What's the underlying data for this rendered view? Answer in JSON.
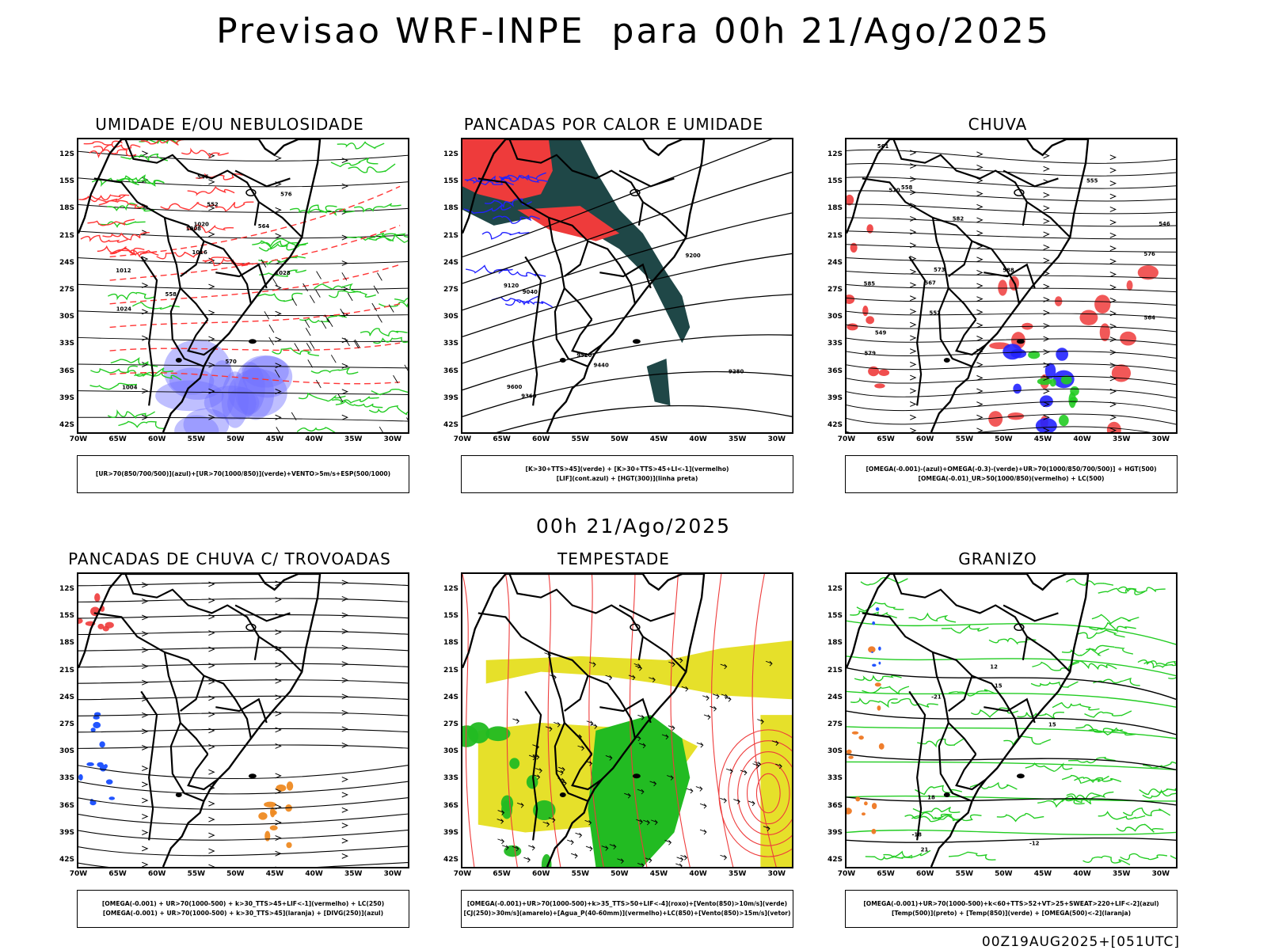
{
  "header": {
    "title": "Previsao WRF-INPE  para 00h 21/Ago/2025",
    "mid_date": "00h 21/Ago/2025",
    "footer_stamp": "00Z19AUG2025+[051UTC]"
  },
  "axes": {
    "y_ticks": [
      "12S",
      "15S",
      "18S",
      "21S",
      "24S",
      "27S",
      "30S",
      "33S",
      "36S",
      "39S",
      "42S"
    ],
    "x_ticks": [
      "70W",
      "65W",
      "60W",
      "55W",
      "50W",
      "45W",
      "40W",
      "35W",
      "30W"
    ]
  },
  "panels": [
    {
      "id": "umidade",
      "title": "UMIDADE E/OU NEBULOSIDADE",
      "legend": [
        "[UR>70(850/700/500)](azul)+[UR>70(1000/850)](verde)+VENTO>5m/s+ESP(500/1000)"
      ],
      "colors": [
        "#7070ff",
        "#22cc22",
        "#ff3333"
      ],
      "labels": [
        "1012",
        "1016",
        "1020",
        "1008",
        "1004",
        "1024",
        "1028",
        "576",
        "570",
        "564",
        "558",
        "552",
        "546"
      ]
    },
    {
      "id": "pancadas-calor",
      "title": "PANCADAS POR CALOR E UMIDADE",
      "legend": [
        "[K>30+TTS>45](verde) + [K>30+TTS>45+LI<-1](vermelho)",
        "[LIF](cont.azul) + [HGT(300)](linha preta)"
      ],
      "colors": [
        "#1f4747",
        "#ee3b3b",
        "#2222ff"
      ],
      "labels": [
        "9600",
        "9520",
        "9440",
        "9360",
        "9280",
        "9200",
        "9120",
        "9040"
      ]
    },
    {
      "id": "chuva",
      "title": "CHUVA",
      "legend": [
        "[OMEGA(-0.001)-(azul)+OMEGA(-0.3)-(verde)+UR>70(1000/850/700/500)] + HGT(500)",
        "[OMEGA(-0.01)_UR>50(1000/850)(vermelho) + LC(500)"
      ],
      "colors": [
        "#2222ff",
        "#22cc22",
        "#ee3b3b"
      ],
      "labels": [
        "588",
        "585",
        "582",
        "579",
        "576",
        "573",
        "570",
        "567",
        "564",
        "561",
        "558",
        "555",
        "552",
        "549",
        "546"
      ]
    },
    {
      "id": "trovoadas",
      "title": "PANCADAS DE CHUVA C/ TROVOADAS",
      "legend": [
        "[OMEGA(-0.001) + UR>70(1000-500) + k>30_TTS>45+LIF<-1](vermelho) + LC(250)",
        "[OMEGA(-0.001) + UR>70(1000-500) + k>30_TTS>45](laranja) + [DIVG(250)](azul)"
      ],
      "colors": [
        "#ee3b3b",
        "#ee8a22",
        "#2255ff"
      ],
      "labels": []
    },
    {
      "id": "tempestade",
      "title": "TEMPESTADE",
      "legend": [
        "[OMEGA(-0.001)+UR>70(1000-500)+k>35_TTS>50+LIF<-4](roxo)+[Vento(850)>10m/s](verde)",
        "[CJ(250)>30m/s](amarelo)+[Agua_P(40-60mm)](vermelho)+LC(850)+[Vento(850)>15m/s](vetor)"
      ],
      "colors": [
        "#e6e02a",
        "#22bb22",
        "#ee3b3b"
      ],
      "labels": []
    },
    {
      "id": "granizo",
      "title": "GRANIZO",
      "legend": [
        "[OMEGA(-0.001)+UR>70(1000-500)+k<60+TTS>52+VT>25+SWEAT>220+LIF<-2](azul)",
        "[Temp(500)](preto) + [Temp(850)](verde) + [OMEGA(500)<-2](laranja)"
      ],
      "colors": [
        "#22cc22",
        "#ee7722",
        "#2255ff"
      ],
      "labels": [
        "-12",
        "-15",
        "-18",
        "-21",
        "12",
        "15",
        "18",
        "21"
      ]
    }
  ]
}
